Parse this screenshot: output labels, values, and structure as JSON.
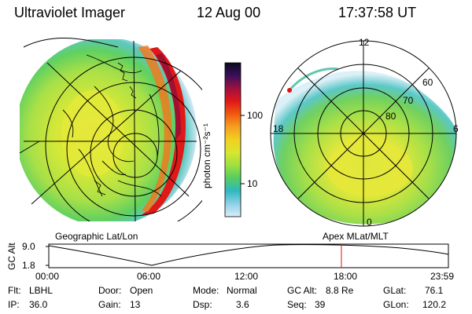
{
  "header": {
    "instrument": "Ultraviolet Imager",
    "date": "12 Aug 00",
    "time": "17:37:58 UT"
  },
  "left_panel": {
    "label": "Geographic Lat/Lon"
  },
  "right_panel": {
    "label": "Apex MLat/MLT",
    "mlt_labels": [
      "12",
      "18",
      "6",
      "0"
    ],
    "mlat_labels": [
      "60",
      "70",
      "80"
    ]
  },
  "colorbar": {
    "unit_label": "photon cm⁻²s⁻¹",
    "ticks": [
      "100",
      "10"
    ],
    "colors": [
      "#0a0a1e",
      "#3a0f5a",
      "#a01040",
      "#e01818",
      "#f05a10",
      "#f5a020",
      "#f2d020",
      "#d8e630",
      "#9ee040",
      "#55cc60",
      "#30b8c0",
      "#8fd0e8",
      "#d8eef8"
    ]
  },
  "altitude_strip": {
    "axis_label": "GC Alt",
    "y_ticks": [
      "9.0",
      "1.8"
    ],
    "x_ticks": [
      "00:00",
      "06:00",
      "12:00",
      "18:00",
      "23:59"
    ],
    "marker_color": "#e01010"
  },
  "footer": {
    "row1": [
      {
        "key": "Flt:",
        "val": "LBHL"
      },
      {
        "key": "Door:",
        "val": "Open"
      },
      {
        "key": "Mode:",
        "val": "Normal"
      },
      {
        "key": "GC Alt:",
        "val": "8.8 Re"
      },
      {
        "key": "GLat:",
        "val": "76.1"
      }
    ],
    "row2": [
      {
        "key": "IP:",
        "val": "36.0"
      },
      {
        "key": "Gain:",
        "val": "13"
      },
      {
        "key": "Dsp:",
        "val": "3.6"
      },
      {
        "key": "Seq:",
        "val": "39"
      },
      {
        "key": "GLon:",
        "val": "120.2"
      }
    ]
  }
}
